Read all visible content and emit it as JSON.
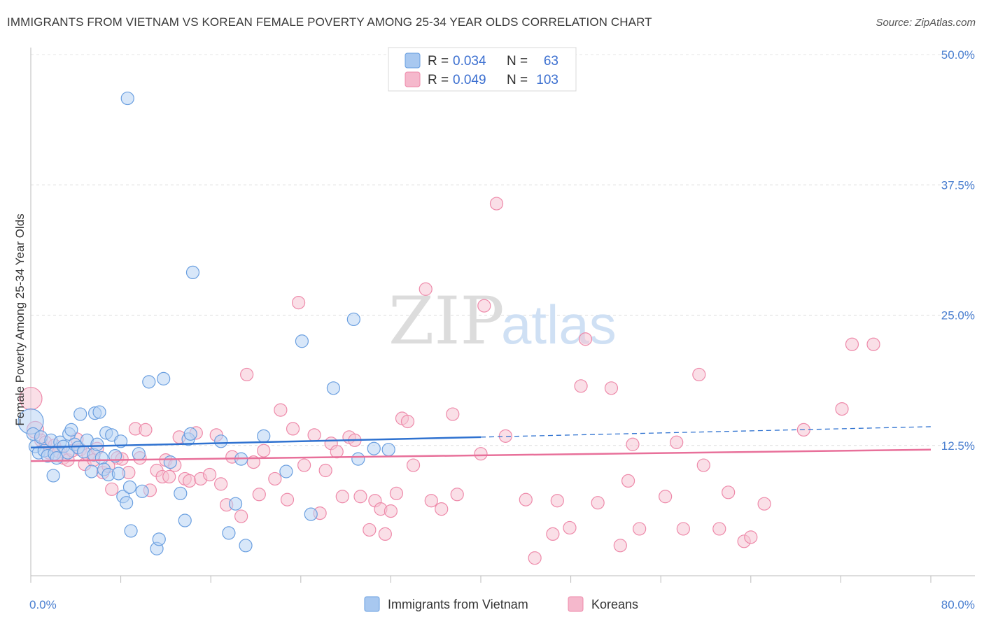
{
  "header": {
    "title": "IMMIGRANTS FROM VIETNAM VS KOREAN FEMALE POVERTY AMONG 25-34 YEAR OLDS CORRELATION CHART",
    "source": "Source: ZipAtlas.com"
  },
  "watermark": {
    "zip": "ZIP",
    "atlas": "atlas"
  },
  "legend": {
    "r_label": "R =",
    "n_label": "N =",
    "entries": [
      {
        "r": "0.034",
        "n": "63",
        "color": "#a8c8f0"
      },
      {
        "r": "0.049",
        "n": "103",
        "color": "#f5b8cc"
      }
    ]
  },
  "bottom_legend": [
    {
      "label": "Immigrants from Vietnam",
      "color": "#a8c8f0"
    },
    {
      "label": "Koreans",
      "color": "#f5b8cc"
    }
  ],
  "chart_data": {
    "type": "scatter",
    "ylabel": "Female Poverty Among 25-34 Year Olds",
    "xlim": [
      0,
      80
    ],
    "ylim": [
      0,
      50
    ],
    "x_tick_labels": [
      "0.0%",
      "80.0%"
    ],
    "y_ticks": [
      {
        "value": 12.5,
        "label": "12.5%"
      },
      {
        "value": 25.0,
        "label": "25.0%"
      },
      {
        "value": 37.5,
        "label": "37.5%"
      },
      {
        "value": 50.0,
        "label": "50.0%"
      }
    ],
    "grid": "horizontal-dashed",
    "colors": {
      "vietnam": "#6a9fe0",
      "koreans": "#ee8aaa",
      "vietnam_line": "#2f72d0",
      "koreans_line": "#e8709a"
    },
    "series": [
      {
        "name": "Immigrants from Vietnam",
        "trend": {
          "x0": 0,
          "y0": 12.3,
          "x1": 40,
          "y1": 13.3,
          "x_dash_end": 80,
          "y_dash_end": 14.3
        },
        "points": [
          [
            0.0,
            14.8,
            18
          ],
          [
            0.2,
            13.6,
            9
          ],
          [
            0.4,
            12.4,
            9
          ],
          [
            0.7,
            11.8,
            9
          ],
          [
            0.9,
            13.3,
            9
          ],
          [
            1.2,
            12.0,
            9
          ],
          [
            1.5,
            11.5,
            9
          ],
          [
            1.8,
            13.0,
            9
          ],
          [
            2.0,
            9.6,
            9
          ],
          [
            2.1,
            11.7,
            9
          ],
          [
            2.3,
            11.3,
            9
          ],
          [
            2.6,
            12.8,
            9
          ],
          [
            2.9,
            12.4,
            9
          ],
          [
            3.3,
            11.8,
            9
          ],
          [
            3.4,
            13.6,
            9
          ],
          [
            3.6,
            14.0,
            9
          ],
          [
            3.9,
            12.6,
            9
          ],
          [
            4.2,
            12.3,
            9
          ],
          [
            4.4,
            15.5,
            9
          ],
          [
            4.7,
            11.9,
            9
          ],
          [
            5.0,
            13.0,
            9
          ],
          [
            5.4,
            10.0,
            9
          ],
          [
            5.6,
            11.6,
            9
          ],
          [
            5.7,
            15.6,
            9
          ],
          [
            5.9,
            12.6,
            9
          ],
          [
            6.1,
            15.7,
            9
          ],
          [
            6.3,
            11.3,
            9
          ],
          [
            6.5,
            10.2,
            9
          ],
          [
            6.7,
            13.7,
            9
          ],
          [
            6.9,
            9.7,
            9
          ],
          [
            7.2,
            13.5,
            9
          ],
          [
            7.5,
            11.5,
            9
          ],
          [
            7.8,
            9.8,
            9
          ],
          [
            8.0,
            12.9,
            9
          ],
          [
            8.2,
            7.6,
            9
          ],
          [
            8.5,
            7.0,
            9
          ],
          [
            8.9,
            4.3,
            9
          ],
          [
            8.8,
            8.5,
            9
          ],
          [
            8.6,
            45.8,
            9
          ],
          [
            9.6,
            11.7,
            9
          ],
          [
            9.9,
            8.1,
            9
          ],
          [
            10.5,
            18.6,
            9
          ],
          [
            11.2,
            2.6,
            9
          ],
          [
            11.4,
            3.5,
            9
          ],
          [
            11.8,
            18.9,
            9
          ],
          [
            12.4,
            10.9,
            9
          ],
          [
            13.3,
            7.9,
            9
          ],
          [
            13.7,
            5.3,
            9
          ],
          [
            14.0,
            13.1,
            9
          ],
          [
            14.2,
            13.6,
            9
          ],
          [
            14.4,
            29.1,
            9
          ],
          [
            16.9,
            12.9,
            9
          ],
          [
            17.6,
            4.1,
            9
          ],
          [
            18.2,
            6.9,
            9
          ],
          [
            18.7,
            11.2,
            9
          ],
          [
            19.1,
            2.9,
            9
          ],
          [
            20.7,
            13.4,
            9
          ],
          [
            22.7,
            10.0,
            9
          ],
          [
            24.1,
            22.5,
            9
          ],
          [
            24.9,
            5.9,
            9
          ],
          [
            26.9,
            18.0,
            9
          ],
          [
            28.7,
            24.6,
            9
          ],
          [
            29.1,
            11.2,
            9
          ],
          [
            30.5,
            12.2,
            9
          ],
          [
            31.8,
            12.1,
            9
          ]
        ]
      },
      {
        "name": "Koreans",
        "trend": {
          "x0": 0,
          "y0": 11.0,
          "x1": 80,
          "y1": 12.1
        },
        "points": [
          [
            0.0,
            17.0,
            16
          ],
          [
            0.4,
            14.0,
            12
          ],
          [
            0.9,
            13.0,
            9
          ],
          [
            1.3,
            12.8,
            9
          ],
          [
            1.6,
            11.8,
            9
          ],
          [
            2.1,
            12.5,
            9
          ],
          [
            2.5,
            11.9,
            9
          ],
          [
            2.9,
            11.3,
            9
          ],
          [
            3.3,
            11.1,
            9
          ],
          [
            3.7,
            12.0,
            9
          ],
          [
            4.1,
            13.1,
            9
          ],
          [
            4.4,
            12.1,
            9
          ],
          [
            4.8,
            10.7,
            9
          ],
          [
            5.1,
            11.6,
            9
          ],
          [
            5.6,
            11.1,
            9
          ],
          [
            5.9,
            12.2,
            9
          ],
          [
            6.4,
            9.9,
            9
          ],
          [
            6.9,
            10.5,
            9
          ],
          [
            7.2,
            8.3,
            9
          ],
          [
            7.7,
            11.3,
            9
          ],
          [
            8.1,
            11.2,
            9
          ],
          [
            8.7,
            9.9,
            9
          ],
          [
            9.3,
            14.1,
            9
          ],
          [
            9.7,
            11.3,
            9
          ],
          [
            10.2,
            14.0,
            9
          ],
          [
            10.6,
            8.2,
            9
          ],
          [
            11.2,
            10.1,
            9
          ],
          [
            11.7,
            9.5,
            9
          ],
          [
            12.0,
            11.1,
            9
          ],
          [
            12.3,
            9.5,
            9
          ],
          [
            12.8,
            10.6,
            9
          ],
          [
            13.2,
            13.3,
            9
          ],
          [
            13.7,
            9.3,
            9
          ],
          [
            14.1,
            9.1,
            9
          ],
          [
            14.7,
            13.7,
            9
          ],
          [
            15.1,
            9.3,
            9
          ],
          [
            15.9,
            9.7,
            9
          ],
          [
            16.5,
            13.5,
            9
          ],
          [
            16.9,
            8.8,
            9
          ],
          [
            17.4,
            6.8,
            9
          ],
          [
            17.9,
            11.4,
            9
          ],
          [
            18.7,
            5.7,
            9
          ],
          [
            19.2,
            19.3,
            9
          ],
          [
            19.8,
            10.9,
            9
          ],
          [
            20.3,
            7.8,
            9
          ],
          [
            20.7,
            12.0,
            9
          ],
          [
            21.7,
            9.3,
            9
          ],
          [
            22.2,
            15.9,
            9
          ],
          [
            22.8,
            7.3,
            9
          ],
          [
            23.3,
            14.1,
            9
          ],
          [
            23.8,
            26.2,
            9
          ],
          [
            24.3,
            10.6,
            9
          ],
          [
            25.2,
            13.5,
            9
          ],
          [
            25.7,
            6.0,
            9
          ],
          [
            26.2,
            10.1,
            9
          ],
          [
            26.7,
            12.7,
            9
          ],
          [
            27.2,
            11.9,
            9
          ],
          [
            27.7,
            7.6,
            9
          ],
          [
            28.3,
            13.3,
            9
          ],
          [
            28.8,
            13.0,
            9
          ],
          [
            29.3,
            7.6,
            9
          ],
          [
            30.1,
            4.4,
            9
          ],
          [
            30.6,
            7.2,
            9
          ],
          [
            31.1,
            6.4,
            9
          ],
          [
            31.5,
            4.0,
            9
          ],
          [
            32.0,
            6.2,
            9
          ],
          [
            32.5,
            7.9,
            9
          ],
          [
            33.0,
            15.1,
            9
          ],
          [
            33.5,
            14.8,
            9
          ],
          [
            34.0,
            10.6,
            9
          ],
          [
            35.1,
            27.5,
            9
          ],
          [
            35.6,
            7.2,
            9
          ],
          [
            36.5,
            6.4,
            9
          ],
          [
            37.5,
            15.5,
            9
          ],
          [
            37.9,
            7.8,
            9
          ],
          [
            40.0,
            11.7,
            9
          ],
          [
            40.3,
            25.9,
            9
          ],
          [
            41.4,
            35.7,
            9
          ],
          [
            42.2,
            13.4,
            9
          ],
          [
            44.0,
            7.3,
            9
          ],
          [
            44.8,
            1.7,
            9
          ],
          [
            46.4,
            4.0,
            9
          ],
          [
            46.8,
            7.2,
            9
          ],
          [
            47.9,
            4.6,
            9
          ],
          [
            48.9,
            18.2,
            9
          ],
          [
            49.3,
            22.7,
            9
          ],
          [
            50.4,
            7.0,
            9
          ],
          [
            51.6,
            18.0,
            9
          ],
          [
            52.4,
            2.9,
            9
          ],
          [
            53.1,
            9.1,
            9
          ],
          [
            53.5,
            12.6,
            9
          ],
          [
            54.1,
            4.5,
            9
          ],
          [
            56.4,
            7.6,
            9
          ],
          [
            57.4,
            12.8,
            9
          ],
          [
            58.0,
            4.5,
            9
          ],
          [
            59.4,
            19.3,
            9
          ],
          [
            59.8,
            10.6,
            9
          ],
          [
            61.2,
            4.5,
            9
          ],
          [
            62.0,
            8.0,
            9
          ],
          [
            63.4,
            3.3,
            9
          ],
          [
            64.0,
            3.7,
            9
          ],
          [
            65.2,
            6.9,
            9
          ],
          [
            68.7,
            14.0,
            9
          ],
          [
            72.1,
            16.0,
            9
          ],
          [
            73.0,
            22.2,
            9
          ],
          [
            74.9,
            22.2,
            9
          ]
        ]
      }
    ]
  }
}
